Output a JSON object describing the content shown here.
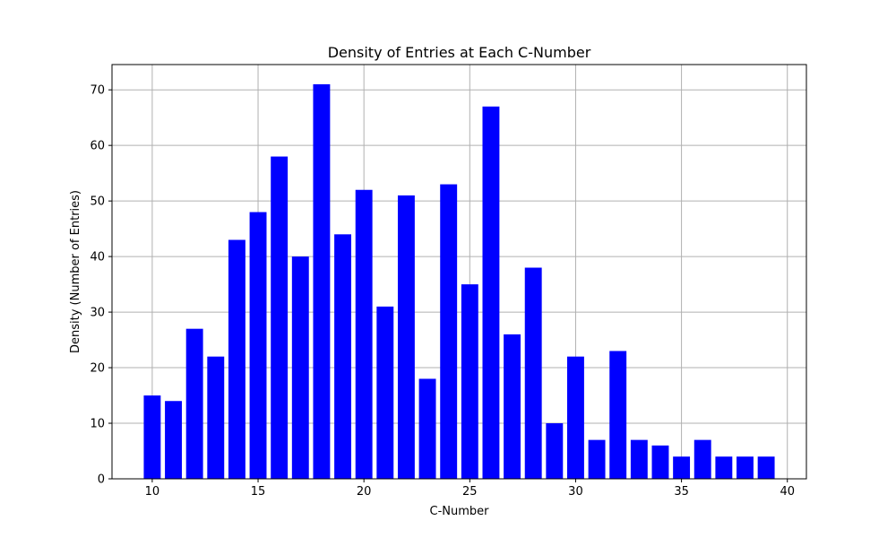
{
  "chart_data": {
    "type": "bar",
    "title": "Density of Entries at Each C-Number",
    "xlabel": "C-Number",
    "ylabel": "Density (Number of Entries)",
    "x": [
      10,
      11,
      12,
      13,
      14,
      15,
      16,
      17,
      18,
      19,
      20,
      21,
      22,
      23,
      24,
      25,
      26,
      27,
      28,
      29,
      30,
      31,
      32,
      33,
      34,
      35,
      36,
      37,
      38,
      39
    ],
    "values": [
      15,
      14,
      27,
      22,
      43,
      48,
      58,
      40,
      71,
      44,
      52,
      31,
      51,
      18,
      53,
      35,
      67,
      26,
      38,
      10,
      22,
      7,
      23,
      7,
      6,
      4,
      7,
      4,
      4,
      4
    ],
    "xlim": [
      8.1,
      40.9
    ],
    "ylim": [
      0,
      74.55
    ],
    "xticks": [
      10,
      15,
      20,
      25,
      30,
      35,
      40
    ],
    "yticks": [
      0,
      10,
      20,
      30,
      40,
      50,
      60,
      70
    ],
    "grid": true,
    "bar_color": "#0000ff"
  }
}
